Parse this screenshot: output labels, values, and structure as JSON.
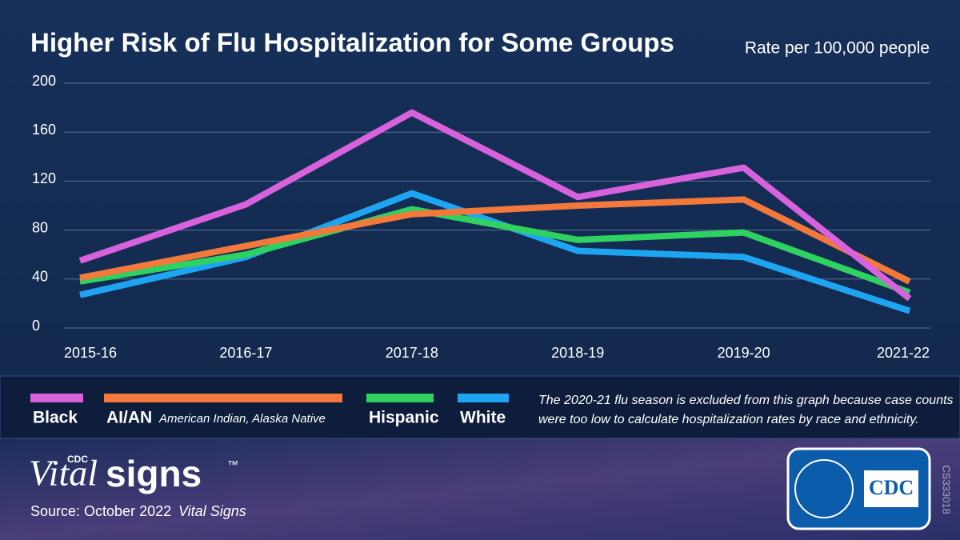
{
  "chart_data": {
    "type": "line",
    "title": "Higher Risk of Flu Hospitalization for Some Groups",
    "subtitle": "Rate per 100,000 people",
    "categories": [
      "2015-16",
      "2016-17",
      "2017-18",
      "2018-19",
      "2019-20",
      "2021-22"
    ],
    "series": [
      {
        "name": "Black",
        "color": "#d861dc",
        "values": [
          55,
          101,
          176,
          107,
          131,
          24
        ]
      },
      {
        "name": "AI/AN",
        "description": "American Indian, Alaska Native",
        "color": "#f2783c",
        "values": [
          41,
          67,
          93,
          100,
          105,
          38
        ]
      },
      {
        "name": "Hispanic",
        "color": "#2fd160",
        "values": [
          38,
          60,
          97,
          72,
          78,
          29
        ]
      },
      {
        "name": "White",
        "color": "#1ea5f2",
        "values": [
          27,
          58,
          110,
          63,
          58,
          14
        ]
      }
    ],
    "ylim": [
      0,
      200
    ],
    "yticks": [
      0,
      40,
      80,
      120,
      160,
      200
    ],
    "grid": true,
    "note": [
      "The 2020-21 flu season is excluded from this graph because case counts",
      "were too low to calculate hospitalization rates by race and ethnicity."
    ]
  },
  "footer": {
    "brand_prefix": "CDC",
    "brand_italic": "Vital",
    "brand_bold": "signs",
    "trademark": "™",
    "source": "Source: October 2022",
    "source_italic": "Vital Signs",
    "logo": "CDC",
    "code": "CS333018"
  }
}
